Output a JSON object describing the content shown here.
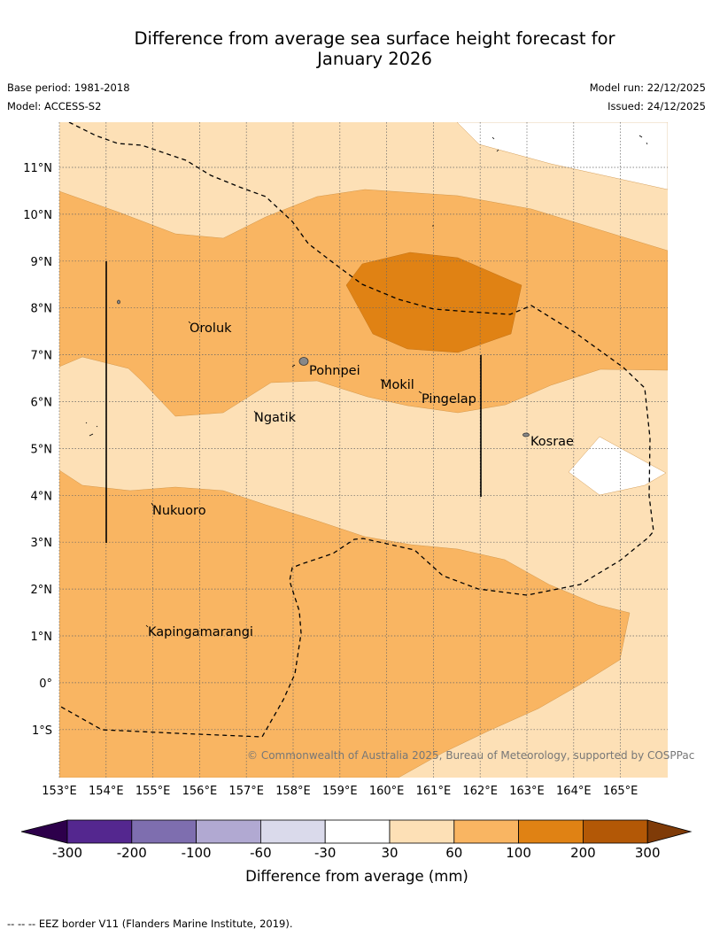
{
  "title": {
    "line1": "Difference from average sea surface height forecast for",
    "line2": "January 2026"
  },
  "meta": {
    "base_period": "Base period: 1981-2018",
    "model": "Model: ACCESS-S2",
    "model_run": "Model run: 22/12/2025",
    "issued": "Issued: 24/12/2025"
  },
  "map": {
    "lat_labels": [
      "11°N",
      "10°N",
      "9°N",
      "8°N",
      "7°N",
      "6°N",
      "5°N",
      "4°N",
      "3°N",
      "2°N",
      "1°N",
      "0°",
      "1°S"
    ],
    "lon_labels": [
      "153°E",
      "154°E",
      "155°E",
      "156°E",
      "157°E",
      "158°E",
      "159°E",
      "160°E",
      "161°E",
      "162°E",
      "163°E",
      "164°E",
      "165°E"
    ],
    "places": [
      "Oroluk",
      "Pohnpei",
      "Mokil",
      "Pingelap",
      "Ngatik",
      "Kosrae",
      "Nukuoro",
      "Kapingamarangi"
    ],
    "copyright": "© Commonwealth of Australia 2025, Bureau of Meteorology, supported by COSPPac"
  },
  "colorbar": {
    "ticks": [
      "-300",
      "-200",
      "-100",
      "-60",
      "-30",
      "30",
      "60",
      "100",
      "200",
      "300"
    ],
    "colors": [
      "#54278f",
      "#7e6eaf",
      "#b1a9d2",
      "#dadaeb",
      "#ffffff",
      "#fde0b6",
      "#f9b562",
      "#e08214",
      "#b35806"
    ],
    "under_color": "#2d004b",
    "over_color": "#7f3b08",
    "label": "Difference from average (mm)"
  },
  "footnote": "-- -- -- EEZ border V11 (Flanders Marine Institute, 2019)."
}
